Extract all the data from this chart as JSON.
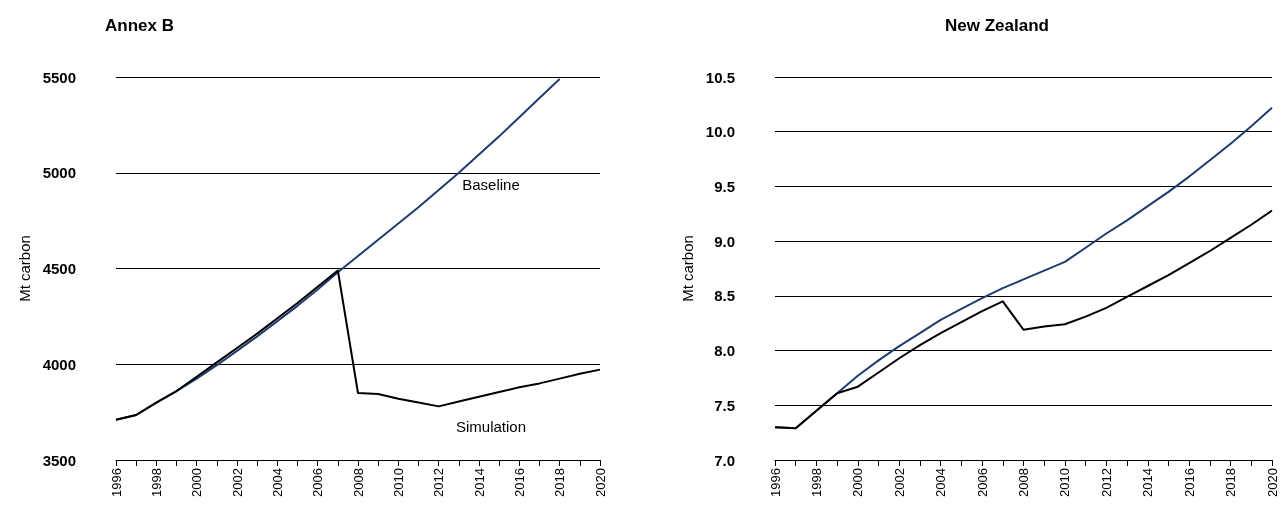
{
  "chart_data": [
    {
      "type": "line",
      "title": "Annex B",
      "ylabel": "Mt carbon",
      "x": [
        1996,
        1997,
        1998,
        1999,
        2000,
        2001,
        2002,
        2003,
        2004,
        2005,
        2006,
        2007,
        2008,
        2009,
        2010,
        2011,
        2012,
        2013,
        2014,
        2015,
        2016,
        2017,
        2018,
        2019,
        2020
      ],
      "series": [
        {
          "name": "Baseline",
          "color": "#1f3c6e",
          "values": [
            3710,
            3735,
            3800,
            3860,
            3925,
            3995,
            4070,
            4145,
            4225,
            4305,
            4390,
            4480,
            4565,
            4650,
            4735,
            4820,
            4910,
            5000,
            5095,
            5190,
            5290,
            5390,
            5490,
            null,
            null
          ]
        },
        {
          "name": "Simulation",
          "color": "#000000",
          "values": [
            3710,
            3735,
            3800,
            3860,
            3935,
            4010,
            4085,
            4160,
            4240,
            4320,
            4405,
            4490,
            3850,
            3845,
            3820,
            3800,
            3780,
            3805,
            3830,
            3855,
            3880,
            3900,
            3925,
            3950,
            3972
          ]
        }
      ],
      "xlim": [
        1996,
        2020
      ],
      "xticks": [
        1996,
        {
          "value": 1997,
          "label": null
        },
        1998,
        {
          "value": 1999,
          "label": null
        },
        2000,
        {
          "value": 2001,
          "label": null
        },
        2002,
        {
          "value": 2003,
          "label": null
        },
        2004,
        {
          "value": 2005,
          "label": null
        },
        2006,
        {
          "value": 2007,
          "label": null
        },
        2008,
        {
          "value": 2009,
          "label": null
        },
        2010,
        {
          "value": 2011,
          "label": null
        },
        2012,
        {
          "value": 2013,
          "label": null
        },
        2014,
        {
          "value": 2015,
          "label": null
        },
        2016,
        {
          "value": 2017,
          "label": null
        },
        2018,
        {
          "value": 2019,
          "label": null
        },
        2020
      ],
      "ylim": [
        3500,
        5500
      ],
      "yticks": [
        3500,
        4000,
        4500,
        5000,
        5500
      ],
      "grid": "y",
      "legend": false,
      "marker": "none",
      "line_style": "solid"
    },
    {
      "type": "line",
      "title": "New Zealand",
      "ylabel": "Mt carbon",
      "x": [
        1996,
        1997,
        1998,
        1999,
        2000,
        2001,
        2002,
        2003,
        2004,
        2005,
        2006,
        2007,
        2008,
        2009,
        2010,
        2011,
        2012,
        2013,
        2014,
        2015,
        2016,
        2017,
        2018,
        2019,
        2020
      ],
      "series": [
        {
          "color": "#1f3c6e",
          "values": [
            7.3,
            7.29,
            7.45,
            7.61,
            7.77,
            7.91,
            8.04,
            8.16,
            8.28,
            8.38,
            8.48,
            8.57,
            8.65,
            8.73,
            8.81,
            8.94,
            9.07,
            9.19,
            9.32,
            9.45,
            9.59,
            9.74,
            9.89,
            10.05,
            10.22
          ]
        },
        {
          "color": "#000000",
          "values": [
            7.3,
            7.29,
            7.45,
            7.61,
            7.67,
            7.8,
            7.93,
            8.05,
            8.16,
            8.26,
            8.36,
            8.45,
            8.19,
            8.22,
            8.24,
            8.31,
            8.39,
            8.49,
            8.59,
            8.69,
            8.8,
            8.91,
            9.03,
            9.15,
            9.28
          ]
        }
      ],
      "xlim": [
        1996,
        2020
      ],
      "xticks": [
        1996,
        {
          "value": 1997,
          "label": null
        },
        1998,
        {
          "value": 1999,
          "label": null
        },
        2000,
        {
          "value": 2001,
          "label": null
        },
        2002,
        {
          "value": 2003,
          "label": null
        },
        2004,
        {
          "value": 2005,
          "label": null
        },
        2006,
        {
          "value": 2007,
          "label": null
        },
        2008,
        {
          "value": 2009,
          "label": null
        },
        2010,
        {
          "value": 2011,
          "label": null
        },
        2012,
        {
          "value": 2013,
          "label": null
        },
        2014,
        {
          "value": 2015,
          "label": null
        },
        2016,
        {
          "value": 2017,
          "label": null
        },
        2018,
        {
          "value": 2019,
          "label": null
        },
        2020
      ],
      "ylim": [
        7.0,
        10.5
      ],
      "yticks": [
        {
          "value": 7.0,
          "label": "7.0"
        },
        7.5,
        {
          "value": 8.0,
          "label": "8.0"
        },
        8.5,
        {
          "value": 9.0,
          "label": "9.0"
        },
        9.5,
        {
          "value": 10.0,
          "label": "10.0"
        },
        10.5
      ],
      "grid": "y",
      "legend": false,
      "marker": "none",
      "line_style": "solid"
    }
  ]
}
